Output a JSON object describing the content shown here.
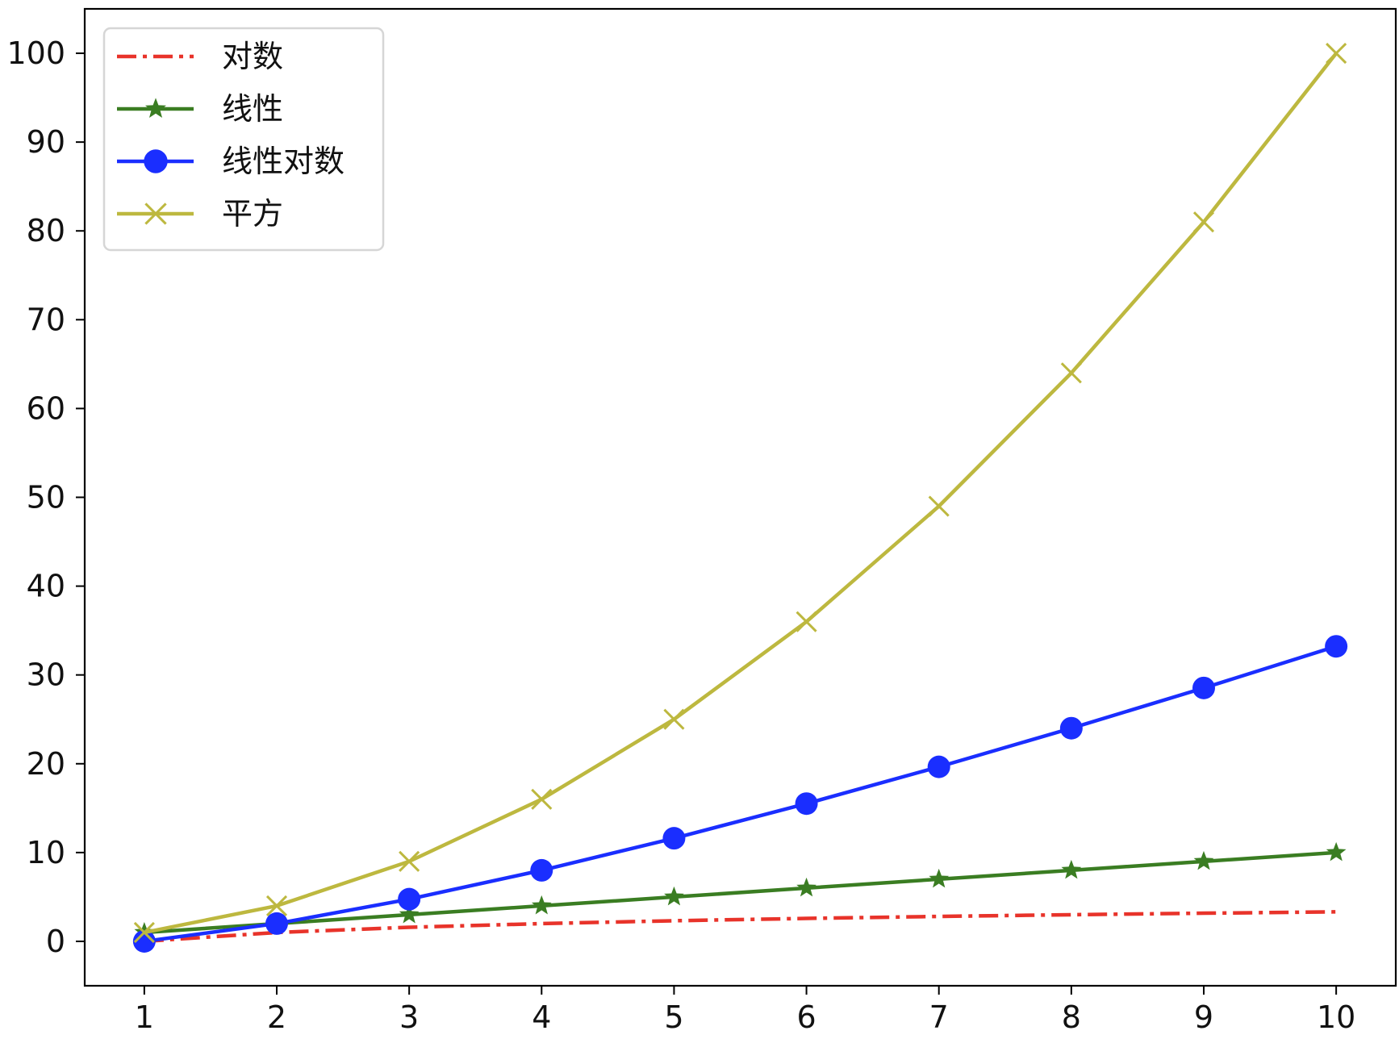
{
  "chart_data": {
    "type": "line",
    "title": "",
    "xlabel": "",
    "ylabel": "",
    "x": [
      1,
      2,
      3,
      4,
      5,
      6,
      7,
      8,
      9,
      10
    ],
    "xlim": [
      0.55,
      10.45
    ],
    "ylim": [
      -5,
      105
    ],
    "xticks": [
      1,
      2,
      3,
      4,
      5,
      6,
      7,
      8,
      9,
      10
    ],
    "yticks": [
      0,
      10,
      20,
      30,
      40,
      50,
      60,
      70,
      80,
      90,
      100
    ],
    "grid": false,
    "legend_position": "upper-left",
    "series": [
      {
        "name": "对数",
        "color": "#e8332a",
        "line_style": "dash-dot",
        "marker": "none",
        "values": [
          0,
          1,
          1.585,
          2,
          2.322,
          2.585,
          2.807,
          3,
          3.17,
          3.322
        ]
      },
      {
        "name": "线性",
        "color": "#3a7d22",
        "line_style": "solid",
        "marker": "star",
        "values": [
          1,
          2,
          3,
          4,
          5,
          6,
          7,
          8,
          9,
          10
        ]
      },
      {
        "name": "线性对数",
        "color": "#1a2eff",
        "line_style": "solid",
        "marker": "circle",
        "values": [
          0,
          2,
          4.75,
          8,
          11.61,
          15.51,
          19.65,
          24,
          28.53,
          33.22
        ]
      },
      {
        "name": "平方",
        "color": "#bdb83f",
        "line_style": "solid",
        "marker": "x",
        "values": [
          1,
          4,
          9,
          16,
          25,
          36,
          49,
          64,
          81,
          100
        ]
      }
    ]
  }
}
